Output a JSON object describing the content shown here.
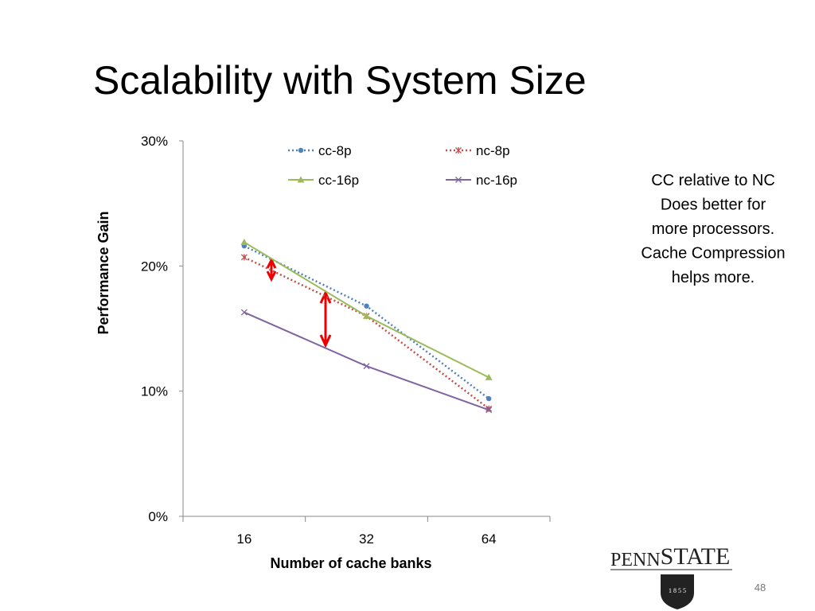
{
  "slide_title": "Scalability with System Size",
  "chart_data": {
    "type": "line",
    "x_label": "Number of cache banks",
    "y_label": "Performance Gain",
    "categories": [
      "16",
      "32",
      "64"
    ],
    "series": [
      {
        "name": "cc-8p",
        "color": "#4f81bd",
        "style": "dotted",
        "marker": "circle",
        "values": [
          21.6,
          16.8,
          9.4
        ]
      },
      {
        "name": "nc-8p",
        "color": "#c0504d",
        "style": "dotted",
        "marker": "star",
        "values": [
          20.7,
          16.0,
          8.6
        ]
      },
      {
        "name": "cc-16p",
        "color": "#9bbb59",
        "style": "solid",
        "marker": "triangle",
        "values": [
          21.9,
          16.0,
          11.1
        ]
      },
      {
        "name": "nc-16p",
        "color": "#8064a2",
        "style": "solid",
        "marker": "x",
        "values": [
          16.3,
          12.0,
          8.5
        ]
      }
    ],
    "ylim": [
      0,
      30
    ],
    "yticks": [
      {
        "value": 0,
        "label": "0%"
      },
      {
        "value": 10,
        "label": "10%"
      },
      {
        "value": 20,
        "label": "20%"
      },
      {
        "value": 30,
        "label": "30%"
      }
    ]
  },
  "note": [
    "CC relative to NC",
    "Does better for",
    "more processors.",
    "Cache Compression",
    "helps more."
  ],
  "logo": {
    "name_first": "PENN",
    "name_second": "STATE",
    "year": "1 8 5 5"
  },
  "page_number": "48"
}
